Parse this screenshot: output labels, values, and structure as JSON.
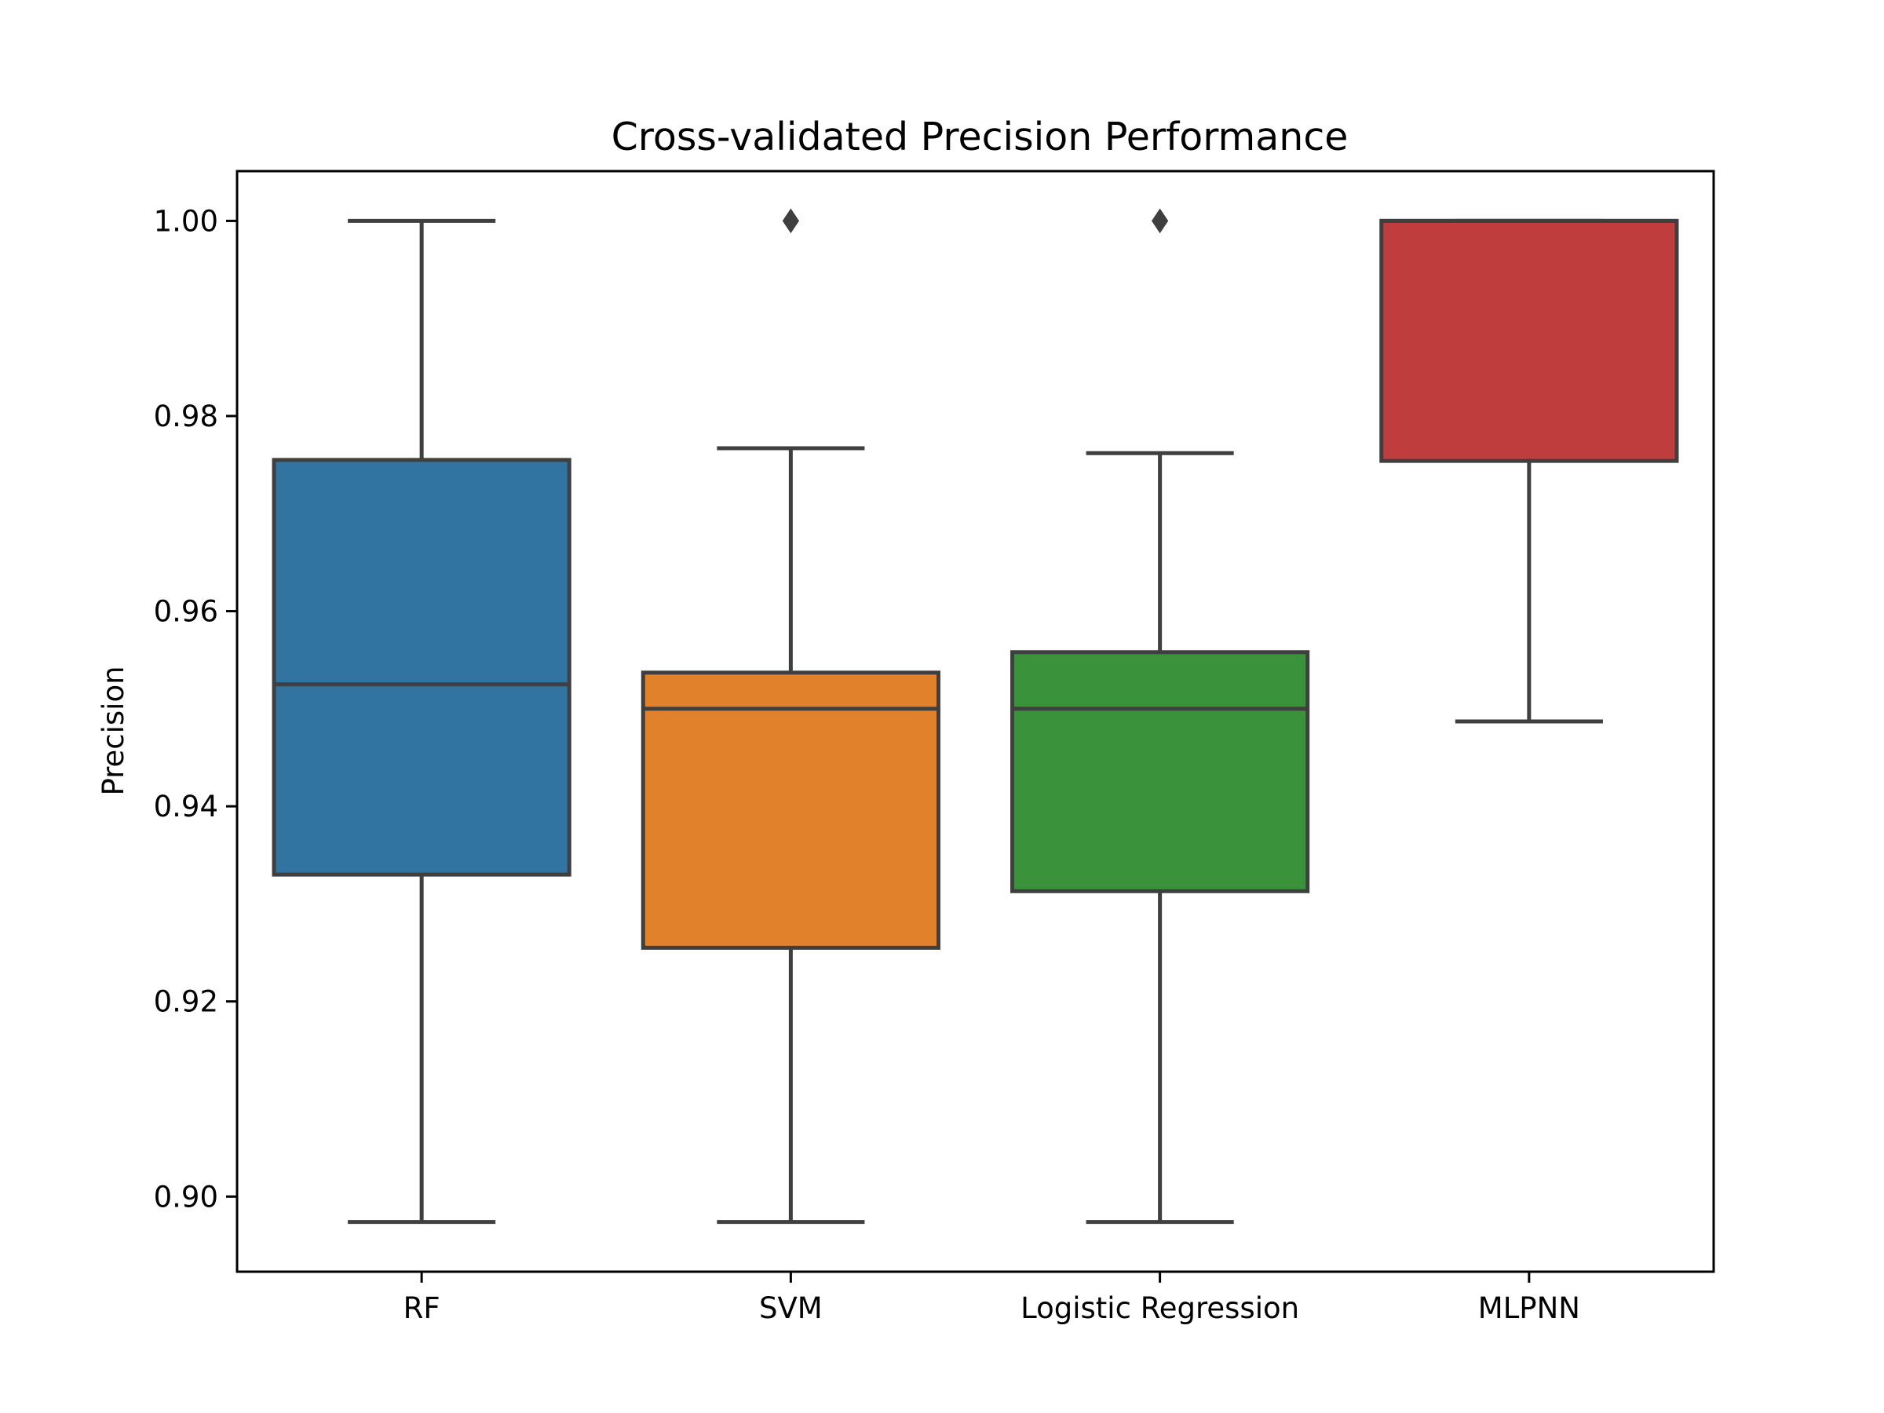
{
  "chart_data": {
    "type": "box",
    "title": "Cross-validated Precision Performance",
    "xlabel": "",
    "ylabel": "Precision",
    "ylim": [
      0.8923,
      1.0051
    ],
    "yticks": [
      0.9,
      0.92,
      0.94,
      0.96,
      0.98,
      1.0
    ],
    "ytick_labels": [
      "0.90",
      "0.92",
      "0.94",
      "0.96",
      "0.98",
      "1.00"
    ],
    "grid": false,
    "boxes": [
      {
        "label": "RF",
        "color": "#3274a1",
        "whisker_low": 0.8974,
        "q1": 0.933,
        "median": 0.9525,
        "q3": 0.9755,
        "whisker_high": 1.0,
        "outliers": []
      },
      {
        "label": "SVM",
        "color": "#e1812c",
        "whisker_low": 0.8974,
        "q1": 0.9255,
        "median": 0.95,
        "q3": 0.9537,
        "whisker_high": 0.9767,
        "outliers": [
          1.0
        ]
      },
      {
        "label": "Logistic Regression",
        "color": "#3a923a",
        "whisker_low": 0.8974,
        "q1": 0.9313,
        "median": 0.95,
        "q3": 0.9558,
        "whisker_high": 0.9762,
        "outliers": [
          1.0
        ]
      },
      {
        "label": "MLPNN",
        "color": "#c03d3e",
        "whisker_low": 0.9487,
        "q1": 0.9754,
        "median": 1.0,
        "q3": 1.0,
        "whisker_high": 1.0,
        "outliers": []
      }
    ]
  }
}
